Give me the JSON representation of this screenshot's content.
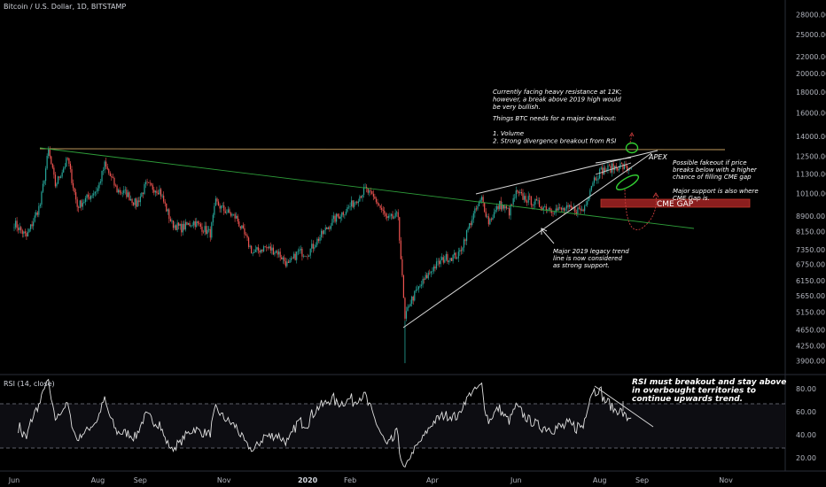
{
  "chart_data": [
    {
      "type": "candlestick",
      "title": "Bitcoin / U.S. Dollar, 1D, BITSTAMP",
      "scale": "log",
      "ylim": [
        3700,
        29500
      ],
      "y_ticks": [
        "28000.00",
        "25000.00",
        "22000.00",
        "20000.00",
        "18000.00",
        "16000.00",
        "14000.00",
        "12500.00",
        "11300.00",
        "10100.00",
        "8900.00",
        "8150.00",
        "7350.00",
        "6750.00",
        "6150.00",
        "5650.00",
        "5150.00",
        "4650.00",
        "4250.00",
        "3900.00"
      ],
      "x_ticks": [
        {
          "label": "Jun",
          "date": "2019-06-01"
        },
        {
          "label": "Aug",
          "date": "2019-08-01"
        },
        {
          "label": "Sep",
          "date": "2019-09-01"
        },
        {
          "label": "Nov",
          "date": "2019-11-01"
        },
        {
          "label": "2020",
          "date": "2020-01-01"
        },
        {
          "label": "Feb",
          "date": "2020-02-01"
        },
        {
          "label": "Apr",
          "date": "2020-04-01"
        },
        {
          "label": "Jun",
          "date": "2020-06-01"
        },
        {
          "label": "Aug",
          "date": "2020-08-01"
        },
        {
          "label": "Sep",
          "date": "2020-09-01"
        },
        {
          "label": "Nov",
          "date": "2020-11-01"
        }
      ],
      "close_series": [
        [
          "2019-06-01",
          8550
        ],
        [
          "2019-06-10",
          7900
        ],
        [
          "2019-06-20",
          9500
        ],
        [
          "2019-06-26",
          12900
        ],
        [
          "2019-07-01",
          10600
        ],
        [
          "2019-07-10",
          12300
        ],
        [
          "2019-07-17",
          9400
        ],
        [
          "2019-07-25",
          9900
        ],
        [
          "2019-08-01",
          10400
        ],
        [
          "2019-08-06",
          11900
        ],
        [
          "2019-08-15",
          10300
        ],
        [
          "2019-08-22",
          10100
        ],
        [
          "2019-08-29",
          9500
        ],
        [
          "2019-09-05",
          10600
        ],
        [
          "2019-09-15",
          10300
        ],
        [
          "2019-09-24",
          8500
        ],
        [
          "2019-10-01",
          8300
        ],
        [
          "2019-10-10",
          8600
        ],
        [
          "2019-10-22",
          8050
        ],
        [
          "2019-10-26",
          9600
        ],
        [
          "2019-11-01",
          9200
        ],
        [
          "2019-11-10",
          8800
        ],
        [
          "2019-11-22",
          7200
        ],
        [
          "2019-12-01",
          7450
        ],
        [
          "2019-12-10",
          7250
        ],
        [
          "2019-12-18",
          6700
        ],
        [
          "2019-12-25",
          7250
        ],
        [
          "2020-01-01",
          7200
        ],
        [
          "2020-01-10",
          7900
        ],
        [
          "2020-01-20",
          8700
        ],
        [
          "2020-02-01",
          9400
        ],
        [
          "2020-02-12",
          10350
        ],
        [
          "2020-02-20",
          9700
        ],
        [
          "2020-02-28",
          8700
        ],
        [
          "2020-03-07",
          8900
        ],
        [
          "2020-03-12",
          4900
        ],
        [
          "2020-03-15",
          5400
        ],
        [
          "2020-03-22",
          5900
        ],
        [
          "2020-04-01",
          6600
        ],
        [
          "2020-04-10",
          7000
        ],
        [
          "2020-04-20",
          7100
        ],
        [
          "2020-04-30",
          8800
        ],
        [
          "2020-05-07",
          9800
        ],
        [
          "2020-05-12",
          8600
        ],
        [
          "2020-05-20",
          9500
        ],
        [
          "2020-05-27",
          9100
        ],
        [
          "2020-06-01",
          10100
        ],
        [
          "2020-06-10",
          9750
        ],
        [
          "2020-06-20",
          9400
        ],
        [
          "2020-07-01",
          9200
        ],
        [
          "2020-07-10",
          9250
        ],
        [
          "2020-07-20",
          9200
        ],
        [
          "2020-07-27",
          10900
        ],
        [
          "2020-08-02",
          11500
        ],
        [
          "2020-08-10",
          11700
        ],
        [
          "2020-08-16",
          11850
        ],
        [
          "2020-08-21",
          11600
        ],
        [
          "2020-08-24",
          11800
        ]
      ],
      "annotations": [
        {
          "id": "resistance",
          "lines": [
            "Currently facing heavy resistance at 12K;",
            "however, a break above 2019 high would",
            "be very bullish."
          ]
        },
        {
          "id": "needs",
          "lines": [
            "Things BTC needs for a major breakout:",
            "",
            "1. Volume",
            "2. Strong divergence breakout from RSI"
          ]
        },
        {
          "id": "fakeout",
          "lines": [
            "Possible fakeout if price",
            "breaks below with a higher",
            "chance of filling CME gap",
            "",
            "Major support is also where",
            "CME Gap is."
          ]
        },
        {
          "id": "legacy",
          "lines": [
            "Major 2019 legacy trend",
            "line is now considered",
            "as strong support."
          ]
        },
        {
          "id": "apex",
          "lines": [
            "APEX"
          ]
        },
        {
          "id": "cme",
          "lines": [
            "CME GAP"
          ]
        }
      ]
    },
    {
      "type": "line",
      "title": "RSI (14, close)",
      "ylim": [
        10,
        90
      ],
      "y_ticks": [
        "80.00",
        "60.00",
        "40.00",
        "20.00"
      ],
      "bands": [
        70,
        30
      ],
      "annotation": [
        "RSI must breakout and stay above",
        "in overbought territories to",
        "continue upwards trend."
      ]
    }
  ],
  "colors": {
    "background": "#000000",
    "up": "#26a69a",
    "down": "#ef5350",
    "trendline": "#c8c8c8",
    "green_line": "#2e9e3a",
    "resistance_line": "#c8a060",
    "cme_box": "#8b1e1e",
    "ellipse": "#32cd32",
    "arrow": "#c83c3c"
  }
}
